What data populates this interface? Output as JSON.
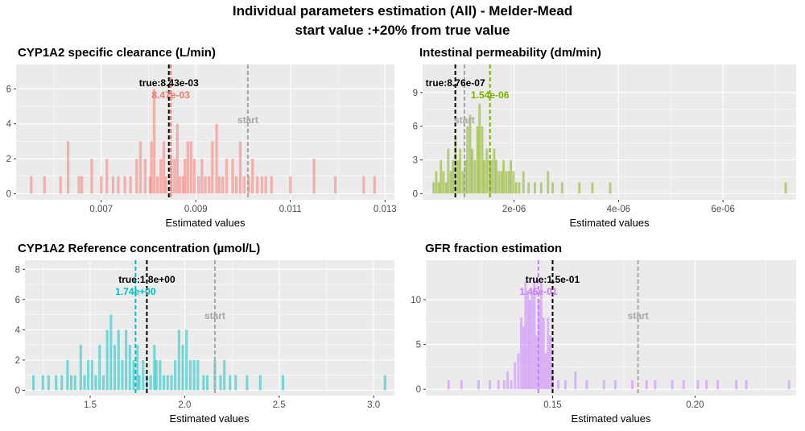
{
  "page": {
    "title_line1": "Individual parameters estimation (All) - Melder-Mead",
    "title_line2": "start value :+20% from true value"
  },
  "colors": {
    "panel_bg": "#ebebeb",
    "grid": "#ffffff",
    "true_line": "#000000",
    "start_line": "#a6a6a6",
    "start_label": "#a6a6a6"
  },
  "chart_data": [
    {
      "type": "bar",
      "title": "CYP1A2 specific clearance (L/min)",
      "xlabel": "Estimated values",
      "color": "#f8766d",
      "xlim": [
        0.0052,
        0.0132
      ],
      "ylim": [
        -0.35,
        7.4
      ],
      "xticks": [
        0.007,
        0.009,
        0.011,
        0.013
      ],
      "xtick_labels": [
        "0.007",
        "0.009",
        "0.011",
        "0.013"
      ],
      "yticks": [
        0,
        2,
        4,
        6
      ],
      "ytick_labels": [
        "0",
        "2",
        "4",
        "6"
      ],
      "bin_width": 5.63e-05,
      "bins": [
        [
          0.00552,
          1
        ],
        [
          0.0058,
          1
        ],
        [
          0.00653,
          1
        ],
        [
          0.00614,
          1
        ],
        [
          0.0063,
          3
        ],
        [
          0.00659,
          1
        ],
        [
          0.0068,
          2
        ],
        [
          0.007,
          1
        ],
        [
          0.00712,
          2
        ],
        [
          0.00725,
          1
        ],
        [
          0.00736,
          1
        ],
        [
          0.0075,
          1
        ],
        [
          0.00762,
          1
        ],
        [
          0.00775,
          2
        ],
        [
          0.00783,
          3
        ],
        [
          0.00793,
          2
        ],
        [
          0.00803,
          1
        ],
        [
          0.00806,
          3
        ],
        [
          0.00812,
          6
        ],
        [
          0.00819,
          1
        ],
        [
          0.00826,
          2
        ],
        [
          0.00832,
          3
        ],
        [
          0.00837,
          1
        ],
        [
          0.00848,
          2
        ],
        [
          0.00855,
          2
        ],
        [
          0.00861,
          4
        ],
        [
          0.00866,
          1
        ],
        [
          0.00873,
          1
        ],
        [
          0.00877,
          2
        ],
        [
          0.00883,
          3
        ],
        [
          0.0089,
          3
        ],
        [
          0.00897,
          2
        ],
        [
          0.00906,
          1
        ],
        [
          0.00913,
          2
        ],
        [
          0.0092,
          1
        ],
        [
          0.00928,
          1
        ],
        [
          0.00935,
          3
        ],
        [
          0.00944,
          4
        ],
        [
          0.0095,
          1
        ],
        [
          0.00957,
          1
        ],
        [
          0.00965,
          2
        ],
        [
          0.00978,
          2
        ],
        [
          0.00986,
          1
        ],
        [
          0.00994,
          3
        ],
        [
          0.01002,
          1
        ],
        [
          0.01012,
          1
        ],
        [
          0.0102,
          2
        ],
        [
          0.0103,
          1
        ],
        [
          0.0104,
          1
        ],
        [
          0.01048,
          1
        ],
        [
          0.0106,
          1
        ],
        [
          0.011,
          1
        ],
        [
          0.0115,
          2
        ],
        [
          0.01195,
          1
        ],
        [
          0.01255,
          1
        ],
        [
          0.01278,
          1
        ]
      ],
      "true_value": 0.00843,
      "true_label": "true:8.43e-03",
      "est_value": 0.00847,
      "est_label": "8.47e-03",
      "start_value": 0.0101,
      "start_label": "start"
    },
    {
      "type": "bar",
      "title": "Intestinal permeability (dm/min)",
      "xlabel": "Estimated values",
      "color": "#7cae00",
      "xlim": [
        2.5e-07,
        7.4e-06
      ],
      "ylim": [
        -0.55,
        11.5
      ],
      "xticks": [
        2e-06,
        4e-06,
        6e-06
      ],
      "xtick_labels": [
        "2e-06",
        "4e-06",
        "6e-06"
      ],
      "yticks": [
        0,
        3,
        6,
        9
      ],
      "ytick_labels": [
        "0",
        "3",
        "6",
        "9"
      ],
      "bin_width": 4.5e-08,
      "bins": [
        [
          4.6e-07,
          1
        ],
        [
          5.1e-07,
          2
        ],
        [
          5.6e-07,
          1
        ],
        [
          6e-07,
          3
        ],
        [
          6.5e-07,
          2
        ],
        [
          7e-07,
          1
        ],
        [
          7.4e-07,
          4
        ],
        [
          7.9e-07,
          2
        ],
        [
          8.3e-07,
          3
        ],
        [
          8.8e-07,
          5
        ],
        [
          9.3e-07,
          3
        ],
        [
          9.7e-07,
          4
        ],
        [
          1.02e-06,
          2
        ],
        [
          1.07e-06,
          3
        ],
        [
          1.11e-06,
          6
        ],
        [
          1.16e-06,
          7
        ],
        [
          1.2e-06,
          4
        ],
        [
          1.25e-06,
          3
        ],
        [
          1.3e-06,
          6
        ],
        [
          1.34e-06,
          8
        ],
        [
          1.39e-06,
          6
        ],
        [
          1.43e-06,
          3
        ],
        [
          1.48e-06,
          4
        ],
        [
          1.53e-06,
          3
        ],
        [
          1.57e-06,
          3
        ],
        [
          1.62e-06,
          4
        ],
        [
          1.66e-06,
          3
        ],
        [
          1.71e-06,
          2
        ],
        [
          1.76e-06,
          2
        ],
        [
          1.8e-06,
          3
        ],
        [
          1.85e-06,
          2
        ],
        [
          1.9e-06,
          2
        ],
        [
          1.94e-06,
          3
        ],
        [
          1.99e-06,
          2
        ],
        [
          2.04e-06,
          1
        ],
        [
          2.1e-06,
          1
        ],
        [
          2.18e-06,
          2
        ],
        [
          2.28e-06,
          1
        ],
        [
          2.4e-06,
          1
        ],
        [
          2.52e-06,
          1
        ],
        [
          2.65e-06,
          2
        ],
        [
          2.74e-06,
          1
        ],
        [
          2.92e-06,
          1
        ],
        [
          3.25e-06,
          1
        ],
        [
          3.5e-06,
          1
        ],
        [
          3.84e-06,
          1
        ],
        [
          7.2e-06,
          1
        ]
      ],
      "true_value": 8.76e-07,
      "true_label": "true:8.76e-07",
      "est_value": 1.54e-06,
      "est_label": "1.54e-06",
      "start_value": 1.05e-06,
      "start_label": "start"
    },
    {
      "type": "bar",
      "title": "CYP1A2 Reference concentration (µmol/L)",
      "xlabel": "Estimated values",
      "color": "#00bfc4",
      "xlim": [
        1.155,
        3.11
      ],
      "ylim": [
        -0.35,
        8.6
      ],
      "xticks": [
        1.5,
        2.0,
        2.5,
        3.0
      ],
      "xtick_labels": [
        "1.5",
        "2.0",
        "2.5",
        "3.0"
      ],
      "yticks": [
        0,
        2,
        4,
        6,
        8
      ],
      "ytick_labels": [
        "0",
        "2",
        "4",
        "6",
        "8"
      ],
      "bin_width": 0.0133,
      "bins": [
        [
          1.2,
          1
        ],
        [
          1.25,
          1
        ],
        [
          1.28,
          1
        ],
        [
          1.32,
          1
        ],
        [
          1.35,
          1
        ],
        [
          1.38,
          2
        ],
        [
          1.4,
          1
        ],
        [
          1.42,
          1
        ],
        [
          1.45,
          3
        ],
        [
          1.47,
          1
        ],
        [
          1.49,
          2
        ],
        [
          1.51,
          2
        ],
        [
          1.53,
          1
        ],
        [
          1.55,
          3
        ],
        [
          1.57,
          1
        ],
        [
          1.59,
          4
        ],
        [
          1.61,
          5
        ],
        [
          1.63,
          3
        ],
        [
          1.65,
          4
        ],
        [
          1.67,
          2
        ],
        [
          1.69,
          4
        ],
        [
          1.71,
          3
        ],
        [
          1.73,
          2
        ],
        [
          1.75,
          3
        ],
        [
          1.76,
          1
        ],
        [
          1.78,
          2
        ],
        [
          1.8,
          1
        ],
        [
          1.82,
          1
        ],
        [
          1.84,
          3
        ],
        [
          1.85,
          2
        ],
        [
          1.87,
          2
        ],
        [
          1.89,
          1
        ],
        [
          1.91,
          1
        ],
        [
          1.93,
          1
        ],
        [
          1.95,
          2
        ],
        [
          1.97,
          4
        ],
        [
          1.99,
          3
        ],
        [
          2.01,
          4
        ],
        [
          2.03,
          2
        ],
        [
          2.05,
          2
        ],
        [
          2.07,
          2
        ],
        [
          2.1,
          1
        ],
        [
          2.12,
          1
        ],
        [
          2.16,
          2
        ],
        [
          2.19,
          1
        ],
        [
          2.21,
          2
        ],
        [
          2.24,
          1
        ],
        [
          2.27,
          1
        ],
        [
          2.33,
          1
        ],
        [
          2.4,
          1
        ],
        [
          2.52,
          1
        ],
        [
          3.06,
          1
        ]
      ],
      "true_value": 1.8,
      "true_label": "true:1.8e+00",
      "est_value": 1.74,
      "est_label": "1.74e+00",
      "start_value": 2.16,
      "start_label": "start"
    },
    {
      "type": "bar",
      "title": "GFR fraction estimation",
      "xlabel": "Estimated values",
      "color": "#c77cff",
      "xlim": [
        0.1055,
        0.2355
      ],
      "ylim": [
        -0.7,
        14.4
      ],
      "xticks": [
        0.15,
        0.2
      ],
      "xtick_labels": [
        "0.15",
        "0.20"
      ],
      "yticks": [
        0,
        5,
        10
      ],
      "ytick_labels": [
        "0",
        "5",
        "10"
      ],
      "bin_width": 0.00085,
      "bins": [
        [
          0.1135,
          1
        ],
        [
          0.118,
          1
        ],
        [
          0.124,
          1
        ],
        [
          0.128,
          1
        ],
        [
          0.131,
          1
        ],
        [
          0.133,
          1
        ],
        [
          0.1342,
          2
        ],
        [
          0.1355,
          1
        ],
        [
          0.1368,
          3
        ],
        [
          0.138,
          4
        ],
        [
          0.139,
          8
        ],
        [
          0.1398,
          7
        ],
        [
          0.1405,
          12
        ],
        [
          0.1413,
          11
        ],
        [
          0.142,
          10
        ],
        [
          0.1428,
          11
        ],
        [
          0.1436,
          12
        ],
        [
          0.1444,
          6
        ],
        [
          0.1452,
          10
        ],
        [
          0.146,
          12
        ],
        [
          0.1468,
          8
        ],
        [
          0.1476,
          4
        ],
        [
          0.1484,
          8
        ],
        [
          0.1492,
          6
        ],
        [
          0.15,
          2
        ],
        [
          0.152,
          1
        ],
        [
          0.1545,
          1
        ],
        [
          0.158,
          2
        ],
        [
          0.162,
          1
        ],
        [
          0.168,
          1
        ],
        [
          0.172,
          1
        ],
        [
          0.178,
          1
        ],
        [
          0.183,
          1
        ],
        [
          0.186,
          1
        ],
        [
          0.192,
          1
        ],
        [
          0.196,
          1
        ],
        [
          0.201,
          1
        ],
        [
          0.204,
          1
        ],
        [
          0.208,
          1
        ],
        [
          0.2145,
          1
        ],
        [
          0.218,
          1
        ],
        [
          0.233,
          1
        ]
      ],
      "true_value": 0.15,
      "true_label": "true:1.5e-01",
      "est_value": 0.145,
      "est_label": "1.45e-01",
      "start_value": 0.18,
      "start_label": "start"
    }
  ]
}
